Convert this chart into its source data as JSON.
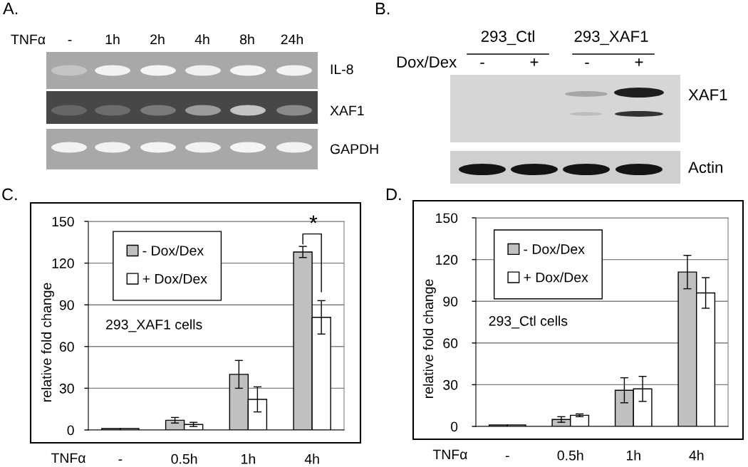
{
  "chart_data": [
    {
      "type": "other",
      "title": "A.",
      "annotations": [
        "TNFα",
        "-",
        "1h",
        "2h",
        "4h",
        "8h",
        "24h",
        "IL-8",
        "XAF1",
        "GAPDH"
      ]
    },
    {
      "type": "other",
      "title": "B.",
      "annotations": [
        "293_Ctl",
        "293_XAF1",
        "Dox/Dex",
        "-",
        "+",
        "-",
        "+",
        "XAF1",
        "Actin"
      ]
    },
    {
      "type": "bar",
      "title": "C.",
      "xlabel": "TNFα",
      "ylabel": "relative fold change",
      "categories": [
        "-",
        "0.5h",
        "1h",
        "4h"
      ],
      "series": [
        {
          "name": "- Dox/Dex",
          "color": "#c0c0c0",
          "values": [
            1,
            7,
            40,
            128
          ],
          "errors": [
            null,
            2,
            10,
            4
          ]
        },
        {
          "name": "+ Dox/Dex",
          "color": "#ffffff",
          "values": [
            1,
            4,
            22,
            81
          ],
          "errors": [
            null,
            1.5,
            9,
            12
          ]
        }
      ],
      "ylim": [
        0,
        150
      ],
      "yticks": [
        0,
        30,
        60,
        90,
        120,
        150
      ],
      "grid": "y",
      "legend": "top left",
      "annotations": [
        "293_XAF1 cells",
        "*"
      ]
    },
    {
      "type": "bar",
      "title": "D.",
      "xlabel": "TNFα",
      "ylabel": "relative fold change",
      "categories": [
        "-",
        "0.5h",
        "1h",
        "4h"
      ],
      "series": [
        {
          "name": "- Dox/Dex",
          "color": "#c0c0c0",
          "values": [
            1,
            5,
            26,
            111
          ],
          "errors": [
            null,
            2,
            9,
            12
          ]
        },
        {
          "name": "+ Dox/Dex",
          "color": "#ffffff",
          "values": [
            1,
            8,
            27,
            96
          ],
          "errors": [
            null,
            1,
            9,
            11
          ]
        }
      ],
      "ylim": [
        0,
        150
      ],
      "yticks": [
        0,
        30,
        60,
        90,
        120,
        150
      ],
      "grid": "y",
      "legend": "top left",
      "annotations": [
        "293_Ctl cells"
      ]
    }
  ]
}
